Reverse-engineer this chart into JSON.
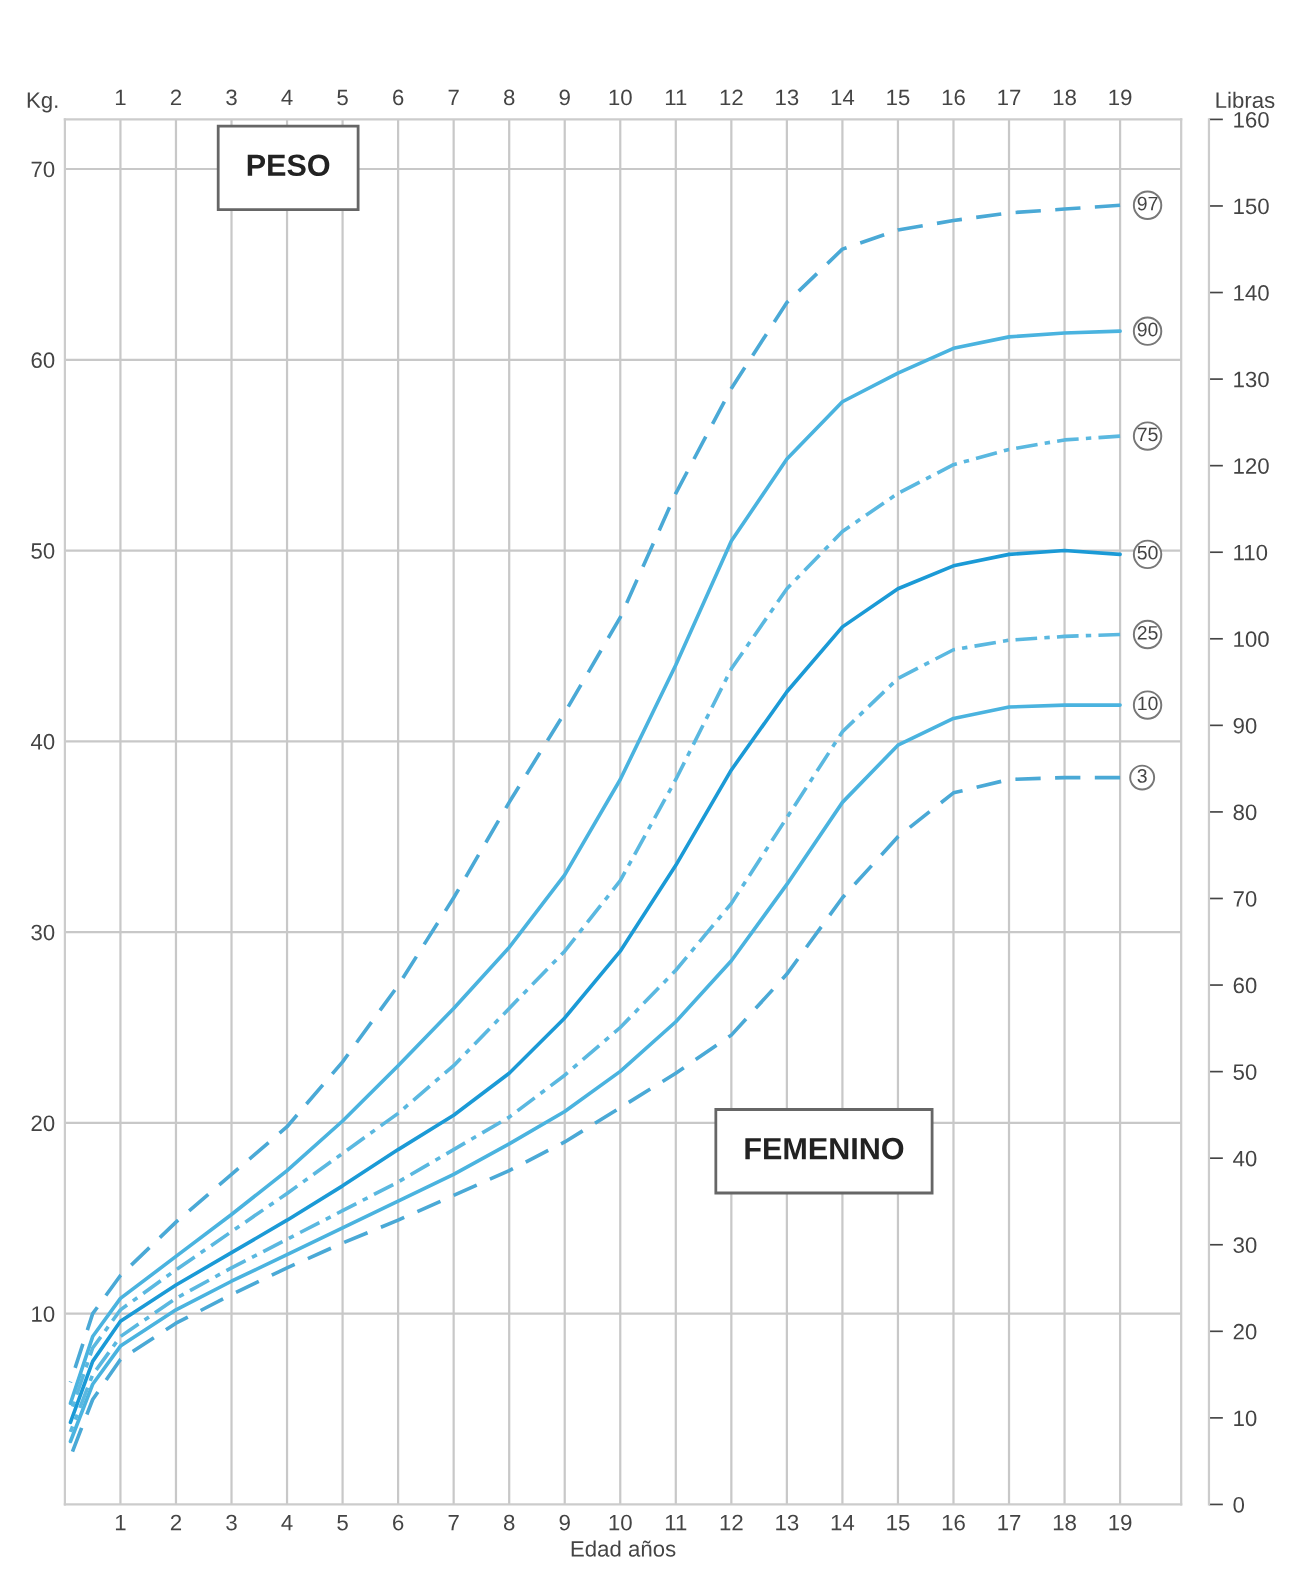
{
  "chart_data": {
    "type": "line",
    "xlabel": "Edad años",
    "ylabel": "Kg.",
    "y2label": "Libras",
    "x": [
      0.1,
      0.5,
      1,
      2,
      3,
      4,
      5,
      6,
      7,
      8,
      9,
      10,
      11,
      12,
      13,
      14,
      15,
      16,
      17,
      18,
      19
    ],
    "series": [
      {
        "name": "97",
        "color": "#4aa9d6",
        "line_style": "dashed",
        "values": [
          6.4,
          10.0,
          12.0,
          14.8,
          17.3,
          19.8,
          23.2,
          27.2,
          31.8,
          36.8,
          41.5,
          46.5,
          53.0,
          58.5,
          63.0,
          65.8,
          66.8,
          67.3,
          67.7,
          67.9,
          68.1
        ]
      },
      {
        "name": "90",
        "color": "#4ab3df",
        "line_style": "solid",
        "values": [
          5.3,
          8.8,
          10.8,
          13.0,
          15.2,
          17.5,
          20.1,
          23.0,
          26.0,
          29.2,
          33.0,
          38.0,
          44.0,
          50.5,
          54.8,
          57.8,
          59.3,
          60.6,
          61.2,
          61.4,
          61.5
        ]
      },
      {
        "name": "75",
        "color": "#5ab8e0",
        "line_style": "dashdot",
        "values": [
          4.8,
          8.2,
          10.2,
          12.3,
          14.3,
          16.3,
          18.4,
          20.5,
          23.0,
          26.0,
          29.0,
          32.7,
          38.0,
          43.8,
          48.0,
          51.0,
          53.0,
          54.5,
          55.3,
          55.8,
          56.0
        ]
      },
      {
        "name": "50",
        "color": "#1b9ad6",
        "line_style": "solid",
        "values": [
          4.3,
          7.5,
          9.6,
          11.5,
          13.2,
          14.9,
          16.7,
          18.6,
          20.4,
          22.6,
          25.5,
          29.0,
          33.5,
          38.5,
          42.6,
          46.0,
          48.0,
          49.2,
          49.8,
          50.0,
          49.8
        ]
      },
      {
        "name": "25",
        "color": "#5ab8e0",
        "line_style": "dashdot",
        "values": [
          3.8,
          6.8,
          8.8,
          10.8,
          12.4,
          13.9,
          15.4,
          16.9,
          18.6,
          20.3,
          22.5,
          25.0,
          28.0,
          31.5,
          36.0,
          40.5,
          43.3,
          44.8,
          45.3,
          45.5,
          45.6
        ]
      },
      {
        "name": "10",
        "color": "#4ab3df",
        "line_style": "solid",
        "values": [
          3.3,
          6.3,
          8.3,
          10.2,
          11.7,
          13.1,
          14.5,
          15.9,
          17.3,
          18.9,
          20.6,
          22.7,
          25.3,
          28.5,
          32.5,
          36.8,
          39.8,
          41.2,
          41.8,
          41.9,
          41.9
        ]
      },
      {
        "name": "3",
        "color": "#4aa9d6",
        "line_style": "dashed",
        "values": [
          2.5,
          5.5,
          7.6,
          9.5,
          11.0,
          12.4,
          13.7,
          14.9,
          16.2,
          17.5,
          19.0,
          20.8,
          22.6,
          24.6,
          27.8,
          31.8,
          35.0,
          37.3,
          38.0,
          38.1,
          38.1
        ]
      }
    ],
    "annotations": [
      "PESO",
      "FEMENINO"
    ],
    "xlim": [
      0,
      20.1
    ],
    "xticks": [
      1,
      2,
      3,
      4,
      5,
      6,
      7,
      8,
      9,
      10,
      11,
      12,
      13,
      14,
      15,
      16,
      17,
      18,
      19
    ],
    "x2lim": [
      0,
      20.1
    ],
    "x2ticks": [
      1,
      2,
      3,
      4,
      5,
      6,
      7,
      8,
      9,
      10,
      11,
      12,
      13,
      14,
      15,
      16,
      17,
      18,
      19
    ],
    "ylim": [
      0,
      72.6
    ],
    "yticks": [
      10,
      20,
      30,
      40,
      50,
      60,
      70
    ],
    "y2lim": [
      0,
      160
    ],
    "y2ticks": [
      0,
      10,
      20,
      30,
      40,
      50,
      60,
      70,
      80,
      90,
      100,
      110,
      120,
      130,
      140,
      150,
      160
    ],
    "grid": true
  }
}
